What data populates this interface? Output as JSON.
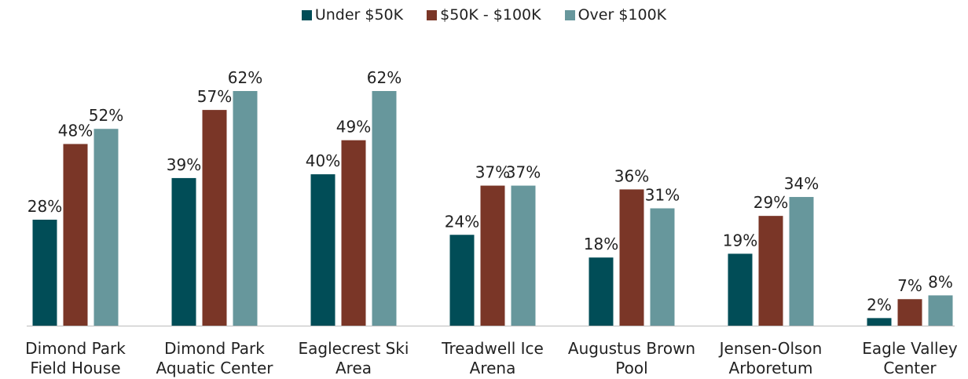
{
  "chart_data": {
    "type": "bar",
    "categories": [
      "Dimond Park Field House",
      "Dimond Park Aquatic Center",
      "Eaglecrest Ski Area",
      "Treadwell Ice Arena",
      "Augustus Brown Pool",
      "Jensen-Olson Arboretum",
      "Eagle Valley Center"
    ],
    "series": [
      {
        "name": "Under $50K",
        "color": "#014d57",
        "values": [
          28,
          39,
          40,
          24,
          18,
          19,
          2
        ],
        "value_labels": [
          "28%",
          "39%",
          "40%",
          "24%",
          "18%",
          "19%",
          "2%"
        ]
      },
      {
        "name": "$50K - $100K",
        "color": "#7a3627",
        "values": [
          48,
          57,
          49,
          37,
          36,
          29,
          7
        ],
        "value_labels": [
          "48%",
          "57%",
          "49%",
          "37%",
          "36%",
          "29%",
          "7%"
        ]
      },
      {
        "name": "Over $100K",
        "color": "#67979c",
        "values": [
          52,
          62,
          62,
          37,
          31,
          34,
          8
        ],
        "value_labels": [
          "52%",
          "62%",
          "62%",
          "37%",
          "31%",
          "34%",
          "8%"
        ]
      }
    ],
    "legend": "top"
  }
}
